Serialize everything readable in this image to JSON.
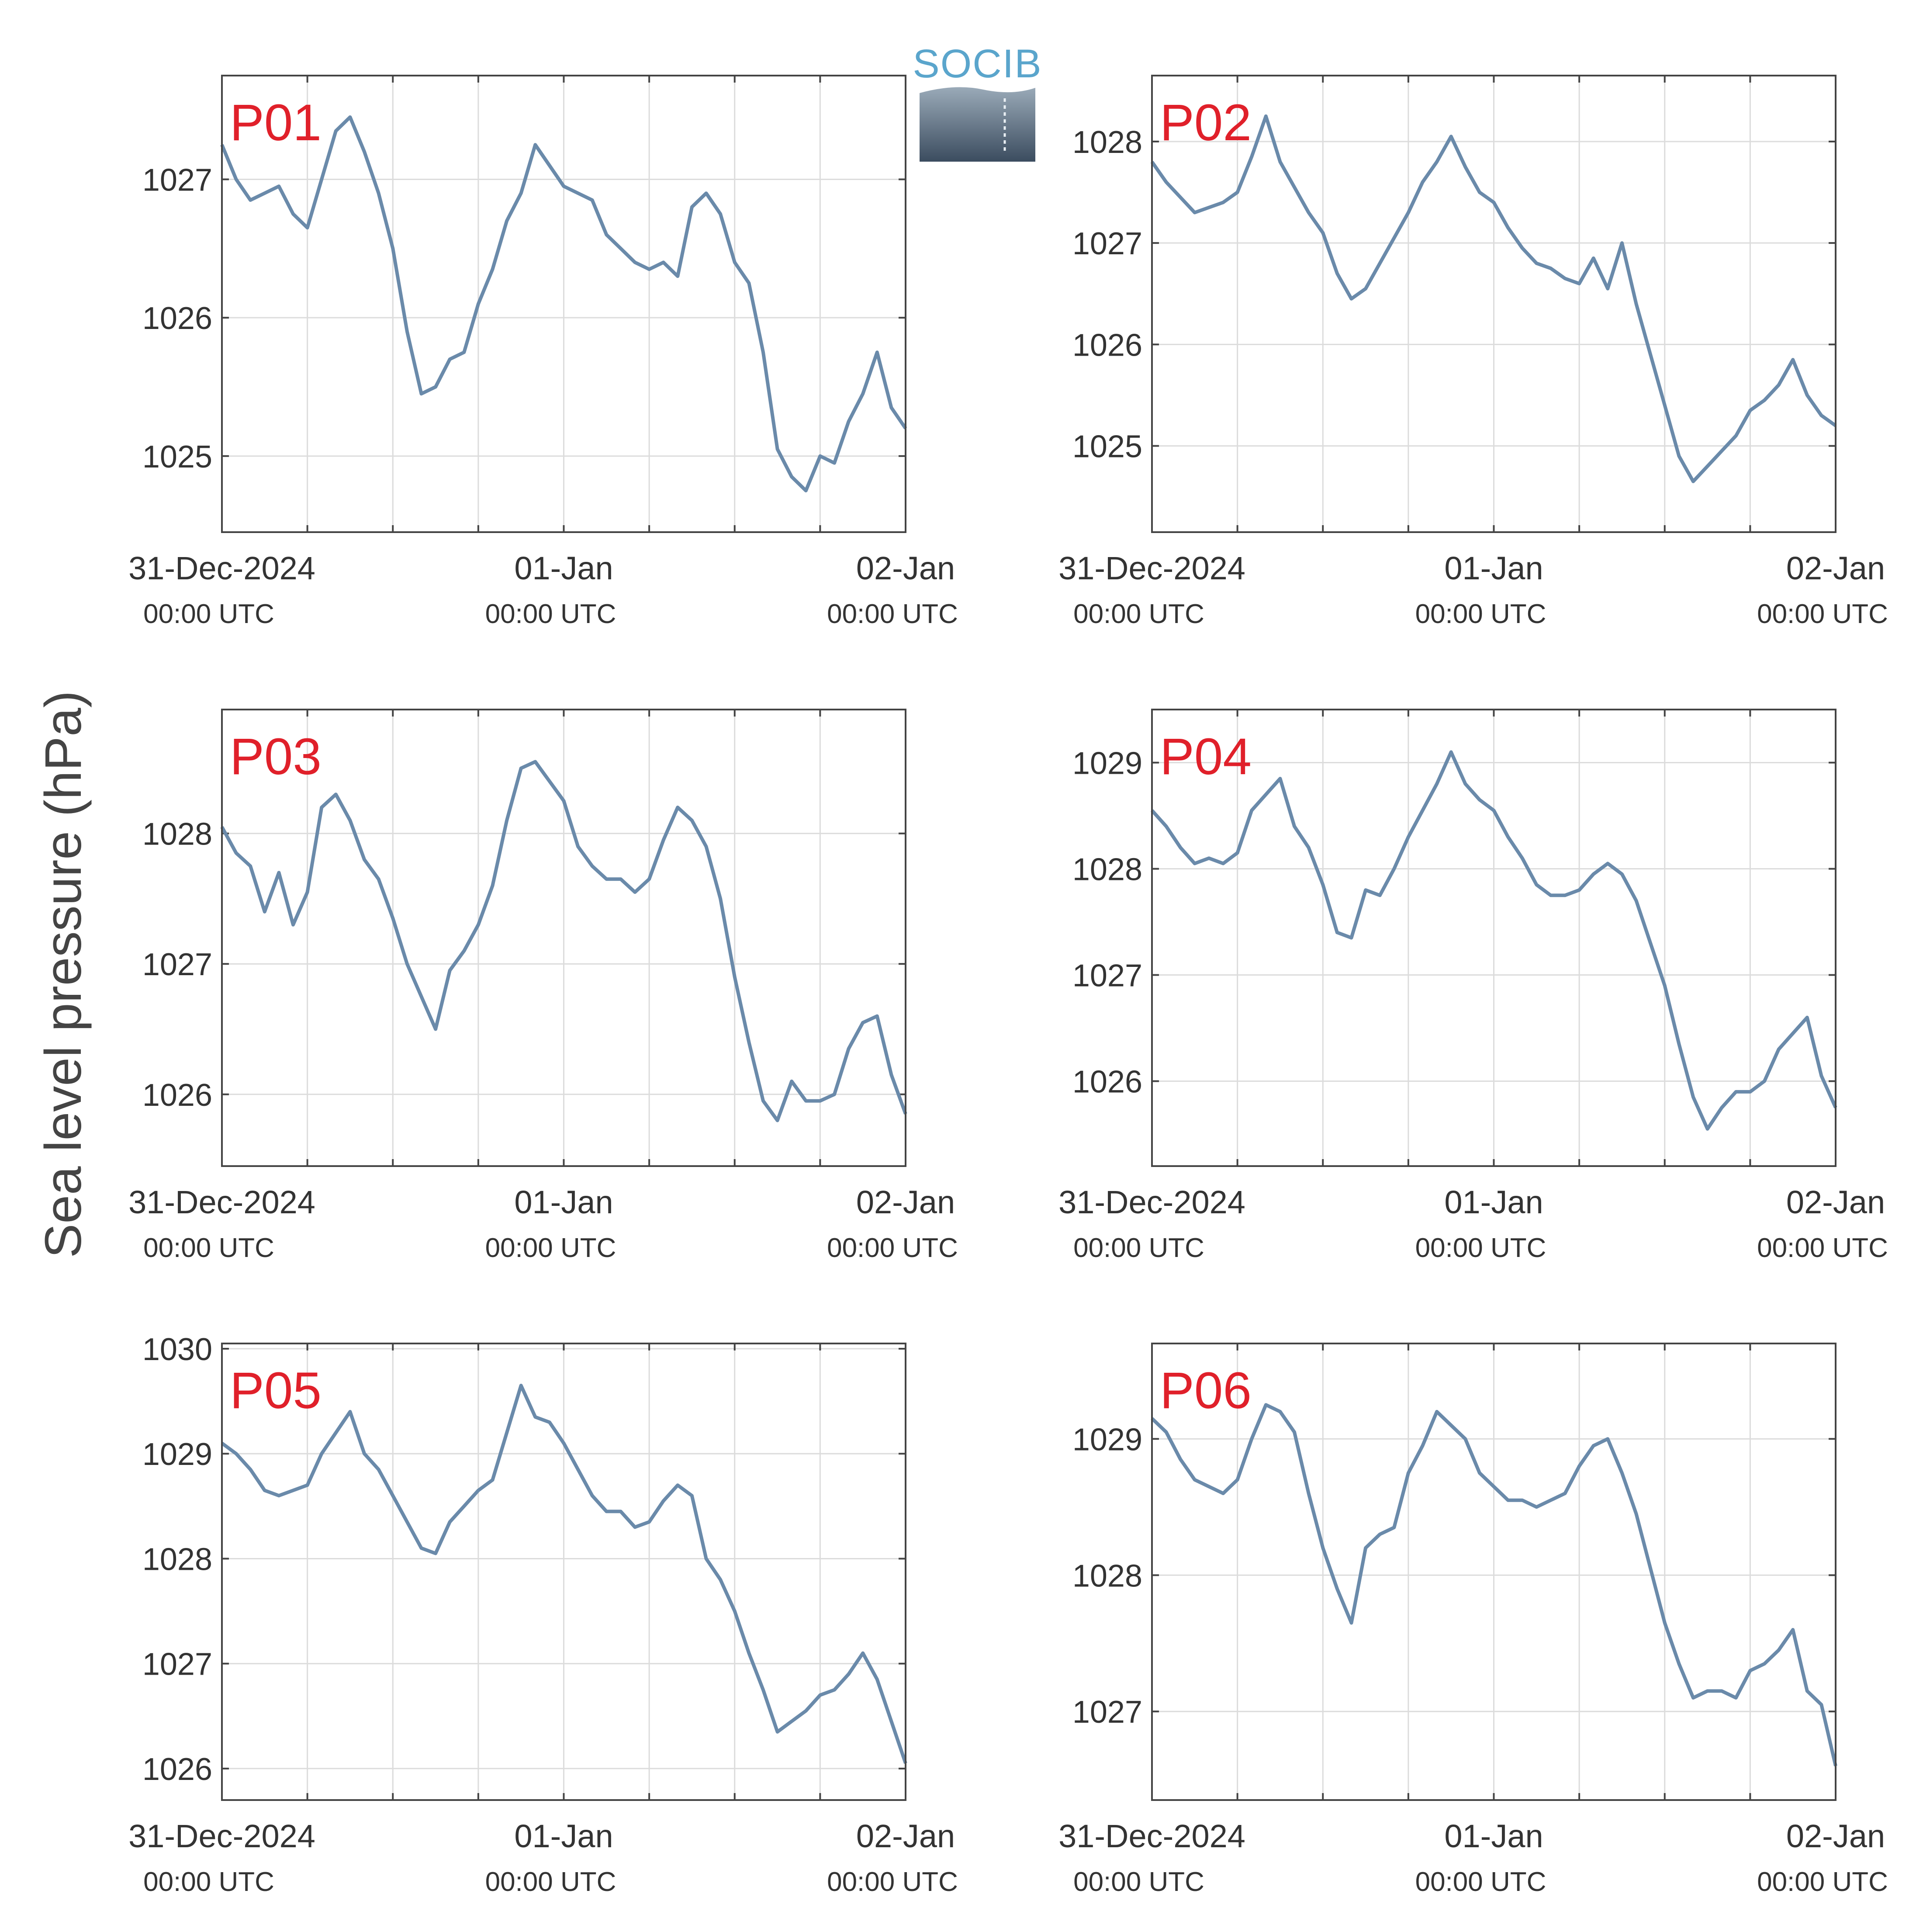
{
  "figure": {
    "ylabel": "Sea level pressure (hPa)",
    "logo": {
      "text": "SOCIB",
      "text_color": "#5aa5cc",
      "gradient_top": "#9aaab8",
      "gradient_bottom": "#3b4c5f"
    },
    "line_color": "#6a8aaa",
    "label_color": "#e0202a",
    "grid_color": "#dcdcdc",
    "axis_color": "#444444"
  },
  "x_ticks": [
    {
      "date": "31-Dec-2024",
      "time": "00:00 UTC",
      "hour": 0
    },
    {
      "date": "01-Jan",
      "time": "00:00 UTC",
      "hour": 24
    },
    {
      "date": "02-Jan",
      "time": "00:00 UTC",
      "hour": 48
    }
  ],
  "chart_data": [
    {
      "type": "line",
      "label": "P01",
      "xlim": [
        0,
        48
      ],
      "ylim": [
        1024.45,
        1027.75
      ],
      "yticks": [
        1025,
        1026,
        1027
      ],
      "x": [
        0,
        1,
        2,
        3,
        4,
        5,
        6,
        7,
        8,
        9,
        10,
        11,
        12,
        13,
        14,
        15,
        16,
        17,
        18,
        19,
        20,
        21,
        22,
        23,
        24,
        25,
        26,
        27,
        28,
        29,
        30,
        31,
        32,
        33,
        34,
        35,
        36,
        37,
        38,
        39,
        40,
        41,
        42,
        43,
        44,
        45,
        46,
        47,
        48
      ],
      "y": [
        1027.25,
        1027.0,
        1026.85,
        1026.9,
        1026.95,
        1026.75,
        1026.65,
        1027.0,
        1027.35,
        1027.45,
        1027.2,
        1026.9,
        1026.5,
        1025.9,
        1025.45,
        1025.5,
        1025.7,
        1025.75,
        1026.1,
        1026.35,
        1026.7,
        1026.9,
        1027.25,
        1027.1,
        1026.95,
        1026.9,
        1026.85,
        1026.6,
        1026.5,
        1026.4,
        1026.35,
        1026.4,
        1026.3,
        1026.8,
        1026.9,
        1026.75,
        1026.4,
        1026.25,
        1025.75,
        1025.05,
        1024.85,
        1024.75,
        1025.0,
        1024.95,
        1025.25,
        1025.45,
        1025.75,
        1025.35,
        1025.2
      ]
    },
    {
      "type": "line",
      "label": "P02",
      "xlim": [
        0,
        48
      ],
      "ylim": [
        1024.15,
        1028.65
      ],
      "yticks": [
        1025,
        1026,
        1027,
        1028
      ],
      "x": [
        0,
        1,
        2,
        3,
        4,
        5,
        6,
        7,
        8,
        9,
        10,
        11,
        12,
        13,
        14,
        15,
        16,
        17,
        18,
        19,
        20,
        21,
        22,
        23,
        24,
        25,
        26,
        27,
        28,
        29,
        30,
        31,
        32,
        33,
        34,
        35,
        36,
        37,
        38,
        39,
        40,
        41,
        42,
        43,
        44,
        45,
        46,
        47,
        48
      ],
      "y": [
        1027.8,
        1027.6,
        1027.45,
        1027.3,
        1027.35,
        1027.4,
        1027.5,
        1027.85,
        1028.25,
        1027.8,
        1027.55,
        1027.3,
        1027.1,
        1026.7,
        1026.45,
        1026.55,
        1026.8,
        1027.05,
        1027.3,
        1027.6,
        1027.8,
        1028.05,
        1027.75,
        1027.5,
        1027.4,
        1027.15,
        1026.95,
        1026.8,
        1026.75,
        1026.65,
        1026.6,
        1026.85,
        1026.55,
        1027.0,
        1026.4,
        1025.9,
        1025.4,
        1024.9,
        1024.65,
        1024.8,
        1024.95,
        1025.1,
        1025.35,
        1025.45,
        1025.6,
        1025.85,
        1025.5,
        1025.3,
        1025.2
      ]
    },
    {
      "type": "line",
      "label": "P03",
      "xlim": [
        0,
        48
      ],
      "ylim": [
        1025.45,
        1028.95
      ],
      "yticks": [
        1026,
        1027,
        1028
      ],
      "x": [
        0,
        1,
        2,
        3,
        4,
        5,
        6,
        7,
        8,
        9,
        10,
        11,
        12,
        13,
        14,
        15,
        16,
        17,
        18,
        19,
        20,
        21,
        22,
        23,
        24,
        25,
        26,
        27,
        28,
        29,
        30,
        31,
        32,
        33,
        34,
        35,
        36,
        37,
        38,
        39,
        40,
        41,
        42,
        43,
        44,
        45,
        46,
        47,
        48
      ],
      "y": [
        1028.05,
        1027.85,
        1027.75,
        1027.4,
        1027.7,
        1027.3,
        1027.55,
        1028.2,
        1028.3,
        1028.1,
        1027.8,
        1027.65,
        1027.35,
        1027.0,
        1026.75,
        1026.5,
        1026.95,
        1027.1,
        1027.3,
        1027.6,
        1028.1,
        1028.5,
        1028.55,
        1028.4,
        1028.25,
        1027.9,
        1027.75,
        1027.65,
        1027.65,
        1027.55,
        1027.65,
        1027.95,
        1028.2,
        1028.1,
        1027.9,
        1027.5,
        1026.9,
        1026.4,
        1025.95,
        1025.8,
        1026.1,
        1025.95,
        1025.95,
        1026.0,
        1026.35,
        1026.55,
        1026.6,
        1026.15,
        1025.85
      ]
    },
    {
      "type": "line",
      "label": "P04",
      "xlim": [
        0,
        48
      ],
      "ylim": [
        1025.2,
        1029.5
      ],
      "yticks": [
        1026,
        1027,
        1028,
        1029
      ],
      "x": [
        0,
        1,
        2,
        3,
        4,
        5,
        6,
        7,
        8,
        9,
        10,
        11,
        12,
        13,
        14,
        15,
        16,
        17,
        18,
        19,
        20,
        21,
        22,
        23,
        24,
        25,
        26,
        27,
        28,
        29,
        30,
        31,
        32,
        33,
        34,
        35,
        36,
        37,
        38,
        39,
        40,
        41,
        42,
        43,
        44,
        45,
        46,
        47,
        48
      ],
      "y": [
        1028.55,
        1028.4,
        1028.2,
        1028.05,
        1028.1,
        1028.05,
        1028.15,
        1028.55,
        1028.7,
        1028.85,
        1028.4,
        1028.2,
        1027.85,
        1027.4,
        1027.35,
        1027.8,
        1027.75,
        1028.0,
        1028.3,
        1028.55,
        1028.8,
        1029.1,
        1028.8,
        1028.65,
        1028.55,
        1028.3,
        1028.1,
        1027.85,
        1027.75,
        1027.75,
        1027.8,
        1027.95,
        1028.05,
        1027.95,
        1027.7,
        1027.3,
        1026.9,
        1026.35,
        1025.85,
        1025.55,
        1025.75,
        1025.9,
        1025.9,
        1026.0,
        1026.3,
        1026.45,
        1026.6,
        1026.05,
        1025.75
      ]
    },
    {
      "type": "line",
      "label": "P05",
      "xlim": [
        0,
        48
      ],
      "ylim": [
        1025.7,
        1030.05
      ],
      "yticks": [
        1026,
        1027,
        1028,
        1029,
        1030
      ],
      "x": [
        0,
        1,
        2,
        3,
        4,
        5,
        6,
        7,
        8,
        9,
        10,
        11,
        12,
        13,
        14,
        15,
        16,
        17,
        18,
        19,
        20,
        21,
        22,
        23,
        24,
        25,
        26,
        27,
        28,
        29,
        30,
        31,
        32,
        33,
        34,
        35,
        36,
        37,
        38,
        39,
        40,
        41,
        42,
        43,
        44,
        45,
        46,
        47,
        48
      ],
      "y": [
        1029.1,
        1029.0,
        1028.85,
        1028.65,
        1028.6,
        1028.65,
        1028.7,
        1029.0,
        1029.2,
        1029.4,
        1029.0,
        1028.85,
        1028.6,
        1028.35,
        1028.1,
        1028.05,
        1028.35,
        1028.5,
        1028.65,
        1028.75,
        1029.2,
        1029.65,
        1029.35,
        1029.3,
        1029.1,
        1028.85,
        1028.6,
        1028.45,
        1028.45,
        1028.3,
        1028.35,
        1028.55,
        1028.7,
        1028.6,
        1028.0,
        1027.8,
        1027.5,
        1027.1,
        1026.75,
        1026.35,
        1026.45,
        1026.55,
        1026.7,
        1026.75,
        1026.9,
        1027.1,
        1026.85,
        1026.45,
        1026.05
      ]
    },
    {
      "type": "line",
      "label": "P06",
      "xlim": [
        0,
        48
      ],
      "ylim": [
        1026.35,
        1029.7
      ],
      "yticks": [
        1027,
        1028,
        1029
      ],
      "x": [
        0,
        1,
        2,
        3,
        4,
        5,
        6,
        7,
        8,
        9,
        10,
        11,
        12,
        13,
        14,
        15,
        16,
        17,
        18,
        19,
        20,
        21,
        22,
        23,
        24,
        25,
        26,
        27,
        28,
        29,
        30,
        31,
        32,
        33,
        34,
        35,
        36,
        37,
        38,
        39,
        40,
        41,
        42,
        43,
        44,
        45,
        46,
        47,
        48
      ],
      "y": [
        1029.15,
        1029.05,
        1028.85,
        1028.7,
        1028.65,
        1028.6,
        1028.7,
        1029.0,
        1029.25,
        1029.2,
        1029.05,
        1028.6,
        1028.2,
        1027.9,
        1027.65,
        1028.2,
        1028.3,
        1028.35,
        1028.75,
        1028.95,
        1029.2,
        1029.1,
        1029.0,
        1028.75,
        1028.65,
        1028.55,
        1028.55,
        1028.5,
        1028.55,
        1028.6,
        1028.8,
        1028.95,
        1029.0,
        1028.75,
        1028.45,
        1028.05,
        1027.65,
        1027.35,
        1027.1,
        1027.15,
        1027.15,
        1027.1,
        1027.3,
        1027.35,
        1027.45,
        1027.6,
        1027.15,
        1027.05,
        1026.6
      ]
    }
  ]
}
